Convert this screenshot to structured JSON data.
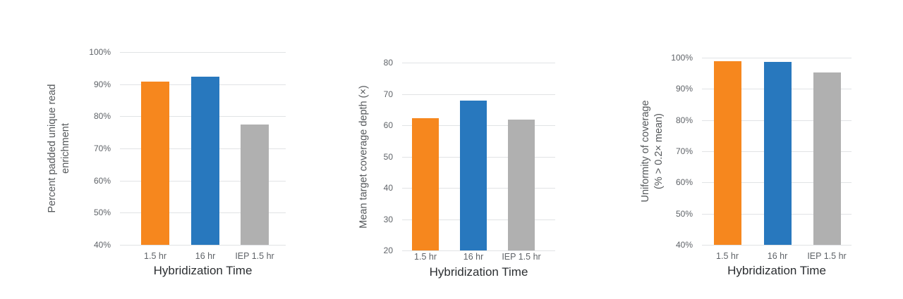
{
  "colors": {
    "orange": "#f6871e",
    "blue": "#2878be",
    "gray": "#b0b0b0",
    "gridline": "#e1e3e5",
    "tick_text": "#5f6368",
    "y_title_text": "#55585b",
    "x_title_text": "#2b2e31",
    "background": "#ffffff"
  },
  "chart_data": [
    {
      "type": "bar",
      "title": "",
      "ylabel": "Percent padded unique read\nenrichment",
      "xlabel": "Hybridization Time",
      "categories": [
        "1.5 hr",
        "16 hr",
        "IEP 1.5 hr"
      ],
      "values": [
        90.7,
        92.3,
        77.4
      ],
      "bar_colors": [
        "#f6871e",
        "#2878be",
        "#b0b0b0"
      ],
      "ylim": [
        40,
        100
      ],
      "ytick_step": 10,
      "ytick_labels": [
        "40%",
        "50%",
        "60%",
        "70%",
        "80%",
        "90%",
        "100%"
      ],
      "grid": true,
      "legend": "none"
    },
    {
      "type": "bar",
      "title": "",
      "ylabel": "Mean target coverage depth (×)",
      "xlabel": "Hybridization Time",
      "categories": [
        "1.5 hr",
        "16 hr",
        "IEP 1.5 hr"
      ],
      "values": [
        62.2,
        67.8,
        61.7
      ],
      "bar_colors": [
        "#f6871e",
        "#2878be",
        "#b0b0b0"
      ],
      "ylim": [
        20,
        80
      ],
      "ytick_step": 10,
      "ytick_labels": [
        "20",
        "30",
        "40",
        "50",
        "60",
        "70",
        "80"
      ],
      "grid": true,
      "legend": "none"
    },
    {
      "type": "bar",
      "title": "",
      "ylabel": "Uniformity of coverage\n(% > 0.2× mean)",
      "xlabel": "Hybridization Time",
      "categories": [
        "1.5 hr",
        "16 hr",
        "IEP 1.5 hr"
      ],
      "values": [
        98.9,
        98.6,
        95.2
      ],
      "bar_colors": [
        "#f6871e",
        "#2878be",
        "#b0b0b0"
      ],
      "ylim": [
        40,
        100
      ],
      "ytick_step": 10,
      "ytick_labels": [
        "40%",
        "50%",
        "60%",
        "70%",
        "80%",
        "90%",
        "100%"
      ],
      "grid": true,
      "legend": "none"
    }
  ]
}
